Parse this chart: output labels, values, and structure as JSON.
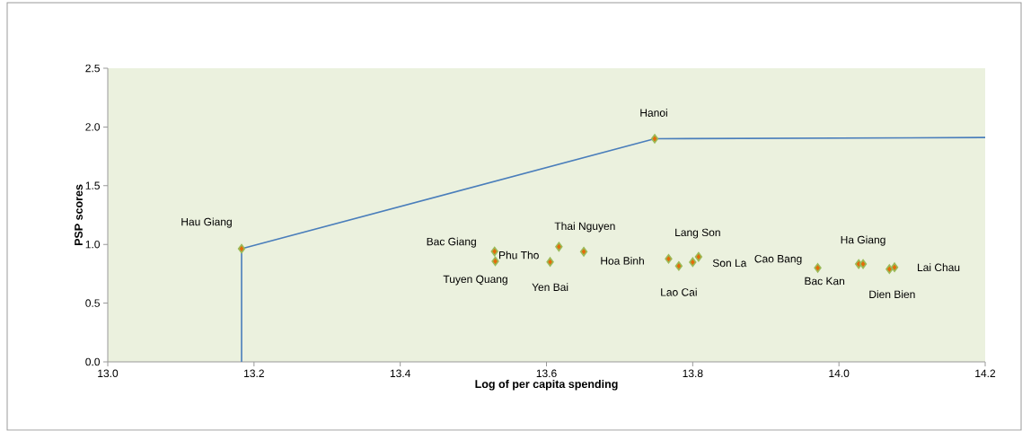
{
  "chart_data": {
    "type": "scatter",
    "xlabel": "Log of per capita spending",
    "ylabel": "PSP scores",
    "xlim": [
      13.0,
      14.2
    ],
    "ylim": [
      0,
      2.5
    ],
    "xticks": [
      {
        "value": 13.0,
        "label": "13.0"
      },
      {
        "value": 13.2,
        "label": "13.2"
      },
      {
        "value": 13.4,
        "label": "13.4"
      },
      {
        "value": 13.6,
        "label": "13.6"
      },
      {
        "value": 13.8,
        "label": "13.8"
      },
      {
        "value": 14.0,
        "label": "14.0"
      },
      {
        "value": 14.2,
        "label": "14.2"
      }
    ],
    "yticks": [
      {
        "value": 0,
        "label": "0.0"
      },
      {
        "value": 0.5,
        "label": "0.5"
      },
      {
        "value": 1.0,
        "label": "1.0"
      },
      {
        "value": 1.5,
        "label": "1.5"
      },
      {
        "value": 2.0,
        "label": "2.0"
      },
      {
        "value": 2.5,
        "label": "2.5"
      }
    ],
    "grid": false,
    "legend": false,
    "marker": "diamond",
    "series": [
      {
        "type": "line",
        "marker": "none",
        "color": "#4a7ebb",
        "x": [
          13.183,
          13.183,
          13.748,
          14.2
        ],
        "values": [
          0,
          0.963,
          1.9,
          1.91
        ]
      },
      {
        "color": "#e46c0a",
        "x": [
          13.183,
          13.748,
          13.529,
          13.53,
          13.605,
          13.617,
          13.651,
          13.767,
          13.808,
          13.781,
          13.8,
          13.971,
          14.027,
          14.033,
          14.069,
          14.076
        ],
        "values": [
          0.963,
          1.9,
          0.94,
          0.856,
          0.851,
          0.98,
          0.938,
          0.877,
          0.894,
          0.816,
          0.849,
          0.8,
          0.833,
          0.833,
          0.79,
          0.805
        ]
      }
    ],
    "annotations": [
      {
        "text": "Hau Giang",
        "x": 13.183,
        "y": 0.963
      },
      {
        "text": "Hanoi",
        "x": 13.748,
        "y": 1.9
      },
      {
        "text": "Bac Giang",
        "x": 13.529,
        "y": 0.94
      },
      {
        "text": "Tuyen Quang",
        "x": 13.53,
        "y": 0.856
      },
      {
        "text": "Yen Bai",
        "x": 13.605,
        "y": 0.851
      },
      {
        "text": "Thai Nguyen",
        "x": 13.617,
        "y": 0.98
      },
      {
        "text": "Phu Tho",
        "x": 13.529,
        "y": 0.94
      },
      {
        "text": "Hoa Binh",
        "x": 13.651,
        "y": 0.938
      },
      {
        "text": "Lang Son",
        "x": 13.808,
        "y": 0.894
      },
      {
        "text": "Lao Cai",
        "x": 13.781,
        "y": 0.816
      },
      {
        "text": "Son La",
        "x": 13.8,
        "y": 0.849
      },
      {
        "text": "Cao Bang",
        "x": 13.971,
        "y": 0.8
      },
      {
        "text": "Bac Kan",
        "x": 14.027,
        "y": 0.833
      },
      {
        "text": "Ha Giang",
        "x": 14.033,
        "y": 0.833
      },
      {
        "text": "Dien Bien",
        "x": 14.069,
        "y": 0.79
      },
      {
        "text": "Lai Chau",
        "x": 14.076,
        "y": 0.805
      }
    ]
  }
}
